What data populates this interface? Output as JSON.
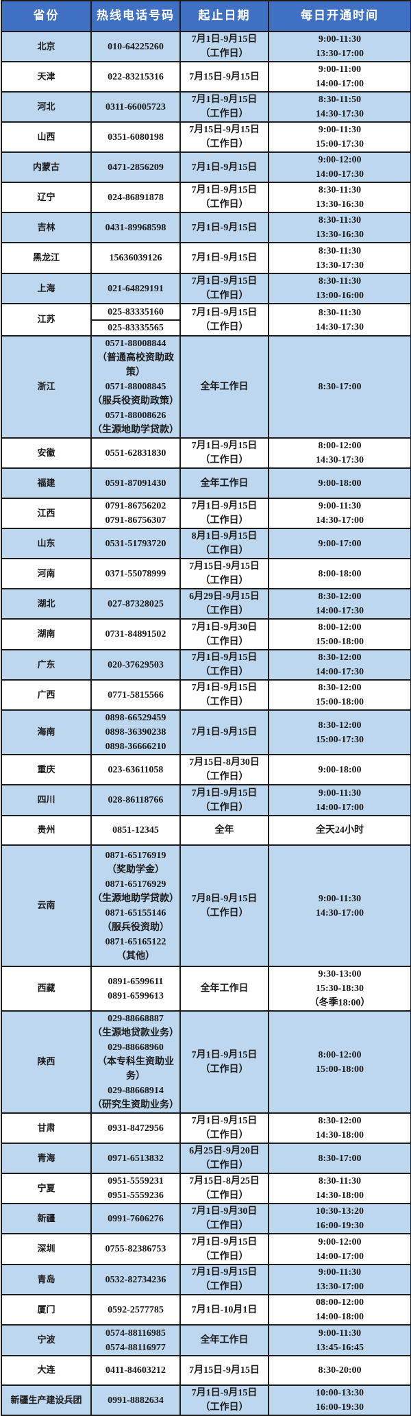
{
  "header": {
    "province": "省份",
    "phone": "热线电话号码",
    "dates": "起止日期",
    "hours": "每日开通时间"
  },
  "colors": {
    "header_bg": "#3f70c2",
    "row_blue": "#bdd7ee",
    "row_white": "#ffffff"
  },
  "rows": [
    {
      "province": "北京",
      "phones": [
        "010-64225260"
      ],
      "dates": [
        "7月1日-9月15日",
        "（工作日）"
      ],
      "hours": [
        "9:00-11:30",
        "13:30-17:00"
      ]
    },
    {
      "province": "天津",
      "phones": [
        "022-83215316"
      ],
      "dates": [
        "7月15日-9月15日"
      ],
      "hours": [
        "9:00-11:00",
        "14:00-17:00"
      ]
    },
    {
      "province": "河北",
      "phones": [
        "0311-66005723"
      ],
      "dates": [
        "7月1日-9月15日",
        "（工作日）"
      ],
      "hours": [
        "8:30-11:50",
        "14:30-17:30"
      ]
    },
    {
      "province": "山西",
      "phones": [
        "0351-6080198"
      ],
      "dates": [
        "7月15日-9月15日",
        "（工作日）"
      ],
      "hours": [
        "9:00-11:30",
        "15:00-17:30"
      ]
    },
    {
      "province": "内蒙古",
      "phones": [
        "0471-2856209"
      ],
      "dates": [
        "7月1日-9月15日"
      ],
      "hours": [
        "9:00-12:00",
        "14:00-17:30"
      ]
    },
    {
      "province": "辽宁",
      "phones": [
        "024-86891878"
      ],
      "dates": [
        "7月1日-9月15日",
        "（工作日）"
      ],
      "hours": [
        "8:30-11:30",
        "13:30-16:30"
      ]
    },
    {
      "province": "吉林",
      "phones": [
        "0431-89968598"
      ],
      "dates": [
        "7月1日-9月15日"
      ],
      "hours": [
        "8:30-11:30",
        "13:30-16:30"
      ]
    },
    {
      "province": "黑龙江",
      "phones": [
        "15636039126"
      ],
      "dates": [
        "7月1日-9月15日"
      ],
      "hours": [
        "8:30-11:30",
        "13:30-17:30"
      ]
    },
    {
      "province": "上海",
      "phones": [
        "021-64829191"
      ],
      "dates": [
        "7月1日-9月15日",
        "（工作日）"
      ],
      "hours": [
        "8:30-11:30",
        "13:00-16:00"
      ]
    },
    {
      "province": "江苏",
      "phones": [
        "025-83335160",
        "025-83335565"
      ],
      "dates": [
        "7月1日-9月15日",
        "（工作日）"
      ],
      "hours": [
        "8:30-11:30",
        "14:30-17:30"
      ]
    },
    {
      "province": "浙江",
      "phones": [
        "0571-88008844",
        "（普通高校资助政策）",
        "0571-88008845",
        "（服兵役资助政策）",
        "0571-88008626",
        "（生源地助学贷款）"
      ],
      "dates": [
        "全年工作日"
      ],
      "hours": [
        "8:30-17:00"
      ]
    },
    {
      "province": "安徽",
      "phones": [
        "0551-62831830"
      ],
      "dates": [
        "7月1日-9月15日",
        "（工作日）"
      ],
      "hours": [
        "8:00-12:00",
        "14:30-17:30"
      ]
    },
    {
      "province": "福建",
      "phones": [
        "0591-87091430"
      ],
      "dates": [
        "全年工作日"
      ],
      "hours": [
        "9:00-18:00"
      ]
    },
    {
      "province": "江西",
      "phones": [
        "0791-86756202",
        "0791-86756307"
      ],
      "dates": [
        "7月1日-9月15日",
        "（工作日）"
      ],
      "hours": [
        "9:00-11:30",
        "14:30-17:00"
      ]
    },
    {
      "province": "山东",
      "phones": [
        "0531-51793720"
      ],
      "dates": [
        "8月1日-9月15日",
        "（工作日）"
      ],
      "hours": [
        "9:00-17:00"
      ]
    },
    {
      "province": "河南",
      "phones": [
        "0371-55078999"
      ],
      "dates": [
        "7月15日-9月15日",
        "（工作日）"
      ],
      "hours": [
        "8:00-18:00"
      ]
    },
    {
      "province": "湖北",
      "phones": [
        "027-87328025"
      ],
      "dates": [
        "6月29日-9月15日",
        "（工作日）"
      ],
      "hours": [
        "8:30-12:00",
        "14:00-17:30"
      ]
    },
    {
      "province": "湖南",
      "phones": [
        "0731-84891502"
      ],
      "dates": [
        "7月1日-9月30日",
        "（工作日）"
      ],
      "hours": [
        "8:00-12:00",
        "15:00-18:00"
      ]
    },
    {
      "province": "广东",
      "phones": [
        "020-37629503"
      ],
      "dates": [
        "7月1日-9月15日",
        "（工作日）"
      ],
      "hours": [
        "8:30-12:00",
        "14:00-17:30"
      ]
    },
    {
      "province": "广西",
      "phones": [
        "0771-5815566"
      ],
      "dates": [
        "7月1日-9月15日",
        "（工作日）"
      ],
      "hours": [
        "8:30-12:00",
        "15:00-18:00"
      ]
    },
    {
      "province": "海南",
      "phones": [
        "0898-66529459",
        "0898-36390238",
        "0898-36666210"
      ],
      "dates": [
        "7月1日-9月15日"
      ],
      "hours": [
        "8:30-12:00",
        "15:00-17:30"
      ]
    },
    {
      "province": "重庆",
      "phones": [
        "023-63611058"
      ],
      "dates": [
        "7月15日-8月30日",
        "（工作日）"
      ],
      "hours": [
        "9:00-18:00"
      ]
    },
    {
      "province": "四川",
      "phones": [
        "028-86118766"
      ],
      "dates": [
        "7月1日-9月15日",
        "（工作日）"
      ],
      "hours": [
        "9:00-11:30",
        "14:00-17:00"
      ]
    },
    {
      "province": "贵州",
      "phones": [
        "0851-12345"
      ],
      "dates": [
        "全年"
      ],
      "hours": [
        "全天24小时"
      ]
    },
    {
      "province": "云南",
      "phones": [
        "0871-65176919",
        "（奖助学金）",
        "0871-65176929",
        "（生源地助学贷款）",
        "0871-65155146",
        "（服兵役资助）",
        "0871-65165122",
        "（其他）"
      ],
      "dates": [
        "7月8日-9月15日",
        "（工作日）"
      ],
      "hours": [
        "9:00-11:30",
        "14:30-17:00"
      ]
    },
    {
      "province": "西藏",
      "phones": [
        "0891-6599611",
        "0891-6599613"
      ],
      "dates": [
        "全年工作日"
      ],
      "hours": [
        "9:30-13:00",
        "15:30-18:30",
        "（冬季18:00）"
      ]
    },
    {
      "province": "陕西",
      "phones": [
        "029-88668887",
        "（生源地贷款业务）",
        "029-88668960",
        "（本专科生资助业务）",
        "029-88668914",
        "（研究生资助业务）"
      ],
      "dates": [
        "7月1日-9月15日",
        "（工作日）"
      ],
      "hours": [
        "8:00-12:00",
        "15:00-18:00"
      ]
    },
    {
      "province": "甘肃",
      "phones": [
        "0931-8472956"
      ],
      "dates": [
        "7月1日-9月15日",
        "（工作日）"
      ],
      "hours": [
        "8:30-12:00",
        "14:30-18:00"
      ]
    },
    {
      "province": "青海",
      "phones": [
        "0971-6513832"
      ],
      "dates": [
        "6月25日-9月20日",
        "（工作日）"
      ],
      "hours": [
        "8:30-17:00"
      ]
    },
    {
      "province": "宁夏",
      "phones": [
        "0951-5559231",
        "0951-5559236"
      ],
      "dates": [
        "7月15日-8月25日",
        "（工作日）"
      ],
      "hours": [
        "8:30-11:30",
        "14:30-18:00"
      ]
    },
    {
      "province": "新疆",
      "phones": [
        "0991-7606276"
      ],
      "dates": [
        "7月1日-9月30日",
        "（工作日）"
      ],
      "hours": [
        "10:30-13:20",
        "16:00-19:30"
      ]
    },
    {
      "province": "深圳",
      "phones": [
        "0755-82386753"
      ],
      "dates": [
        "7月1日-9月15日",
        "（工作日）"
      ],
      "hours": [
        "9:00-12:00",
        "14:00-17:00"
      ]
    },
    {
      "province": "青岛",
      "phones": [
        "0532-82734236"
      ],
      "dates": [
        "7月1日-9月15日",
        "（工作日）"
      ],
      "hours": [
        "9:00-11:30",
        "13:30-17:00"
      ]
    },
    {
      "province": "厦门",
      "phones": [
        "0592-2577785"
      ],
      "dates": [
        "7月1日-10月1日"
      ],
      "hours": [
        "08:00-12:00",
        "14:00-18:00"
      ]
    },
    {
      "province": "宁波",
      "phones": [
        "0574-88116985",
        "0574-88116977"
      ],
      "dates": [
        "全年工作日"
      ],
      "hours": [
        "9:00-11:30",
        "13:45-16:45"
      ]
    },
    {
      "province": "大连",
      "phones": [
        "0411-84603212"
      ],
      "dates": [
        "7月15日-9月15日"
      ],
      "hours": [
        "8:30-20:00"
      ]
    },
    {
      "province": "新疆生产建设兵团",
      "phones": [
        "0991-8882634"
      ],
      "dates": [
        "7月1日-9月15日",
        "（工作日）"
      ],
      "hours": [
        "10:00-13:30",
        "16:00-19:30"
      ]
    }
  ]
}
